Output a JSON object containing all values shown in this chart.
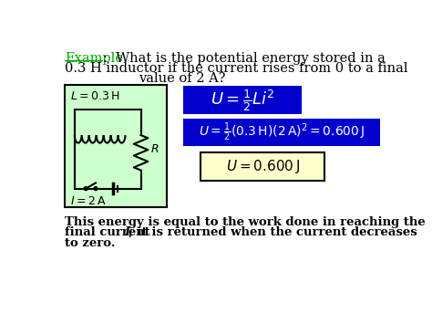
{
  "bg_color": "#ffffff",
  "title_example_color": "#00aa00",
  "title_text_color": "#000000",
  "example_label": "Example",
  "title_line1": ":  What is the potential energy stored in a",
  "title_line2": "0.3 H inductor if the current rises from 0 to a final",
  "title_line3": "value of 2 A?",
  "circuit_bg": "#ccffcc",
  "circuit_border": "#000000",
  "formula1_bg": "#0000cc",
  "formula1_text": "#ffffff",
  "formula1_latex": "$U = \\frac{1}{2}Li^2$",
  "formula2_bg": "#0000cc",
  "formula2_text": "#ffffff",
  "formula2_latex": "$U = \\frac{1}{2}(0.3\\,\\mathrm{H})(2\\,\\mathrm{A})^2 = 0.600\\,\\mathrm{J}$",
  "result_bg": "#ffffcc",
  "result_border": "#000000",
  "result_latex": "$U = 0.600\\,\\mathrm{J}$",
  "L_label": "$L = 0.3\\,\\mathrm{H}$",
  "I_label": "$I = 2\\,\\mathrm{A}$",
  "R_label": "$R$",
  "bottom_line1": "This energy is equal to the work done in reaching the",
  "bottom_line2a": "final current ",
  "bottom_line2b": "I",
  "bottom_line2c": "; it is returned when the current decreases",
  "bottom_line3": "to zero."
}
